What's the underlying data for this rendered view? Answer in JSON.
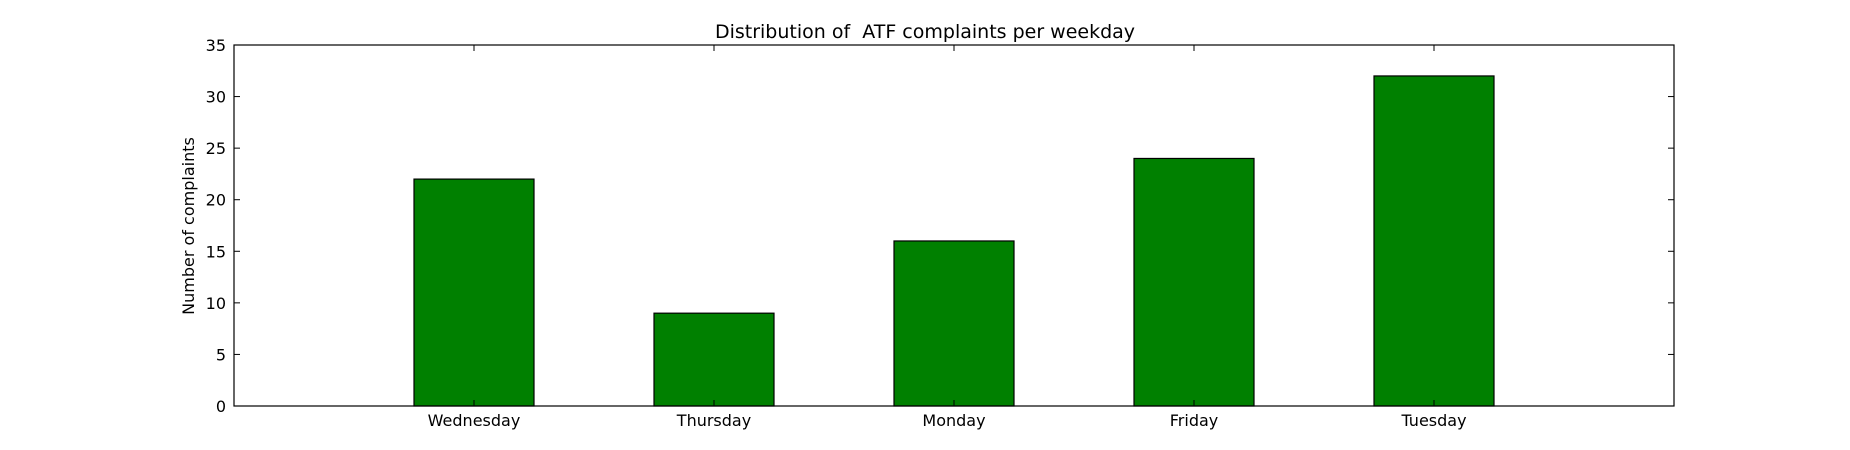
{
  "chart_data": {
    "type": "bar",
    "title": "Distribution of  ATF complaints per weekday",
    "xlabel": "",
    "ylabel": "Number of complaints",
    "categories": [
      "Wednesday",
      "Thursday",
      "Monday",
      "Friday",
      "Tuesday"
    ],
    "values": [
      22,
      9,
      16,
      24,
      32
    ],
    "ylim": [
      0,
      35
    ],
    "yticks": [
      0,
      5,
      10,
      15,
      20,
      25,
      30,
      35
    ],
    "bar_color": "#008000",
    "grid": false,
    "legend": "none"
  }
}
